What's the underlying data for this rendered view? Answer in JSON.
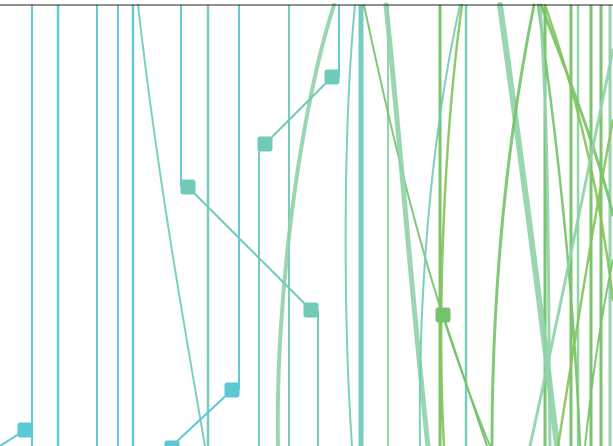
{
  "palette": {
    "cyan": "#5bc8d6",
    "teal": "#6fcbb8",
    "mint": "#8fd3a8",
    "green": "#74c26a",
    "lime": "#86c35a",
    "axis": "#222222"
  },
  "diagram": {
    "type": "flow-lines",
    "axis_line": "top",
    "marker_shape": "rounded-square",
    "connections": "straight-diagonal"
  }
}
